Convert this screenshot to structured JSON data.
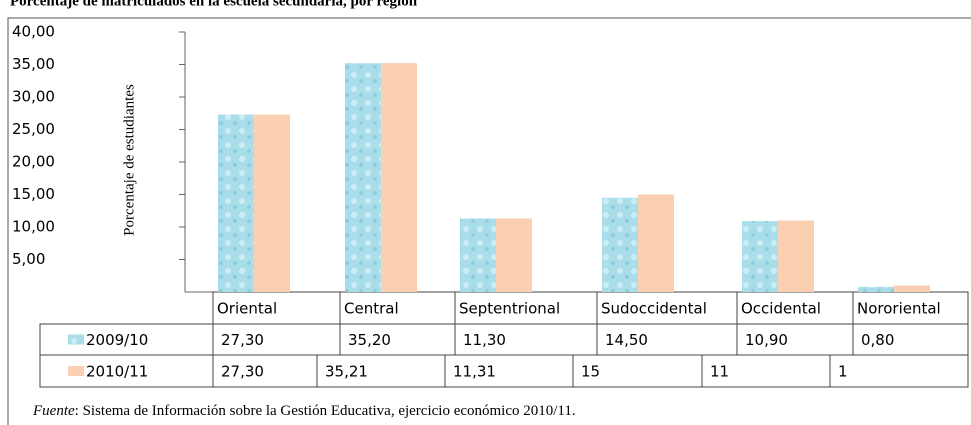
{
  "chart_data": {
    "type": "bar",
    "title": "Porcentaje de matriculados en la escuela secundaria, por región",
    "ylabel": "Porcentaje de estudiantes",
    "categories": [
      "Oriental",
      "Central",
      "Septentrional",
      "Sudoccidental",
      "Occidental",
      "Nororiental"
    ],
    "series": [
      {
        "name": "2009/10",
        "color": "#a9dde9",
        "values": [
          27.3,
          35.2,
          11.3,
          14.5,
          10.9,
          0.8
        ],
        "value_labels": [
          "27,30",
          "35,20",
          "11,30",
          "14,50",
          "10,90",
          "0,80"
        ]
      },
      {
        "name": "2010/11",
        "color": "#fbcfb1",
        "values": [
          27.3,
          35.21,
          11.31,
          15,
          11,
          1
        ],
        "value_labels": [
          "27,30",
          "35,21",
          "11,31",
          "15",
          "11",
          "1"
        ]
      }
    ],
    "ylim": [
      0,
      40
    ],
    "yticks": [
      {
        "value": 5,
        "label": "5,00"
      },
      {
        "value": 10,
        "label": "10,00"
      },
      {
        "value": 15,
        "label": "15,00"
      },
      {
        "value": 20,
        "label": "20,00"
      },
      {
        "value": 25,
        "label": "25,00"
      },
      {
        "value": 30,
        "label": "30,00"
      },
      {
        "value": 35,
        "label": "35,00"
      },
      {
        "value": 40,
        "label": "40,00"
      }
    ],
    "source_label": "Fuente",
    "source_text": ": Sistema de Información sobre la Gestión Educativa, ejercicio económico 2010/11."
  }
}
